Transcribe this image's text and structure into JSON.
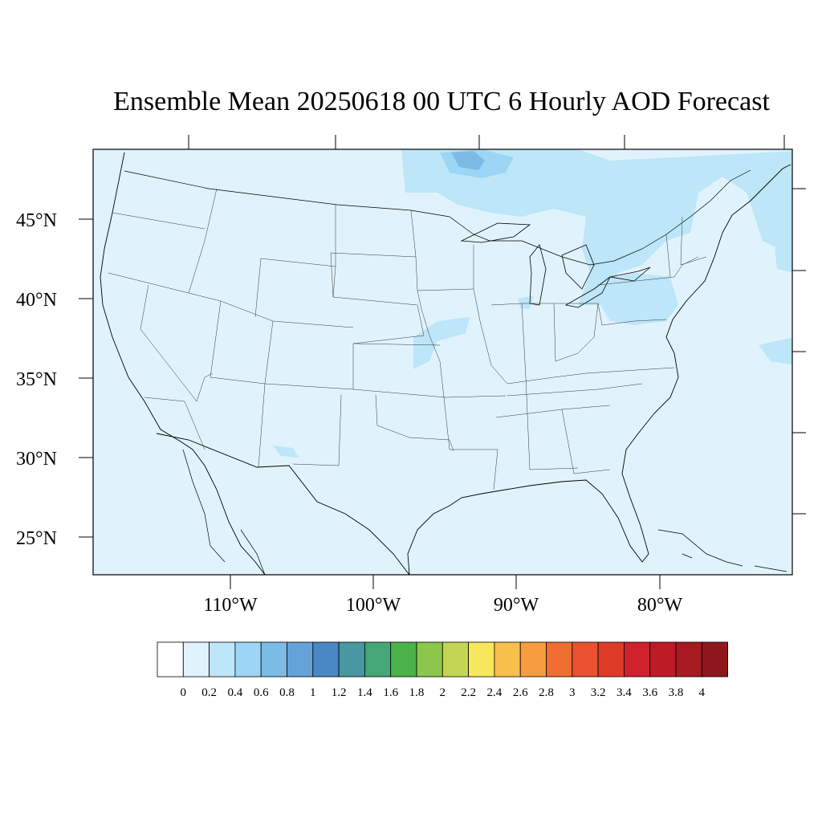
{
  "title": "Ensemble Mean 20250618 00 UTC 6 Hourly AOD Forecast",
  "map": {
    "lat_labels": [
      "45°N",
      "40°N",
      "35°N",
      "30°N",
      "25°N"
    ],
    "lon_labels": [
      "110°W",
      "100°W",
      "90°W",
      "80°W"
    ]
  },
  "colorbar": {
    "colors": [
      "#ffffff",
      "#e0f3fc",
      "#bde6f8",
      "#9cd6f4",
      "#7bbbe6",
      "#64a3d8",
      "#4a87c5",
      "#4798a0",
      "#45a677",
      "#4ab349",
      "#8cc64d",
      "#c3d653",
      "#f7e85b",
      "#f8bf4c",
      "#f79c3f",
      "#f06e30",
      "#e95130",
      "#dd3b28",
      "#d0222c",
      "#bd1c27",
      "#a81a22",
      "#90161d"
    ],
    "labels": [
      "0",
      "0.2",
      "0.4",
      "0.6",
      "0.8",
      "1",
      "1.2",
      "1.4",
      "1.6",
      "1.8",
      "2",
      "2.2",
      "2.4",
      "2.6",
      "2.8",
      "3",
      "3.2",
      "3.4",
      "3.6",
      "3.8",
      "4"
    ]
  }
}
